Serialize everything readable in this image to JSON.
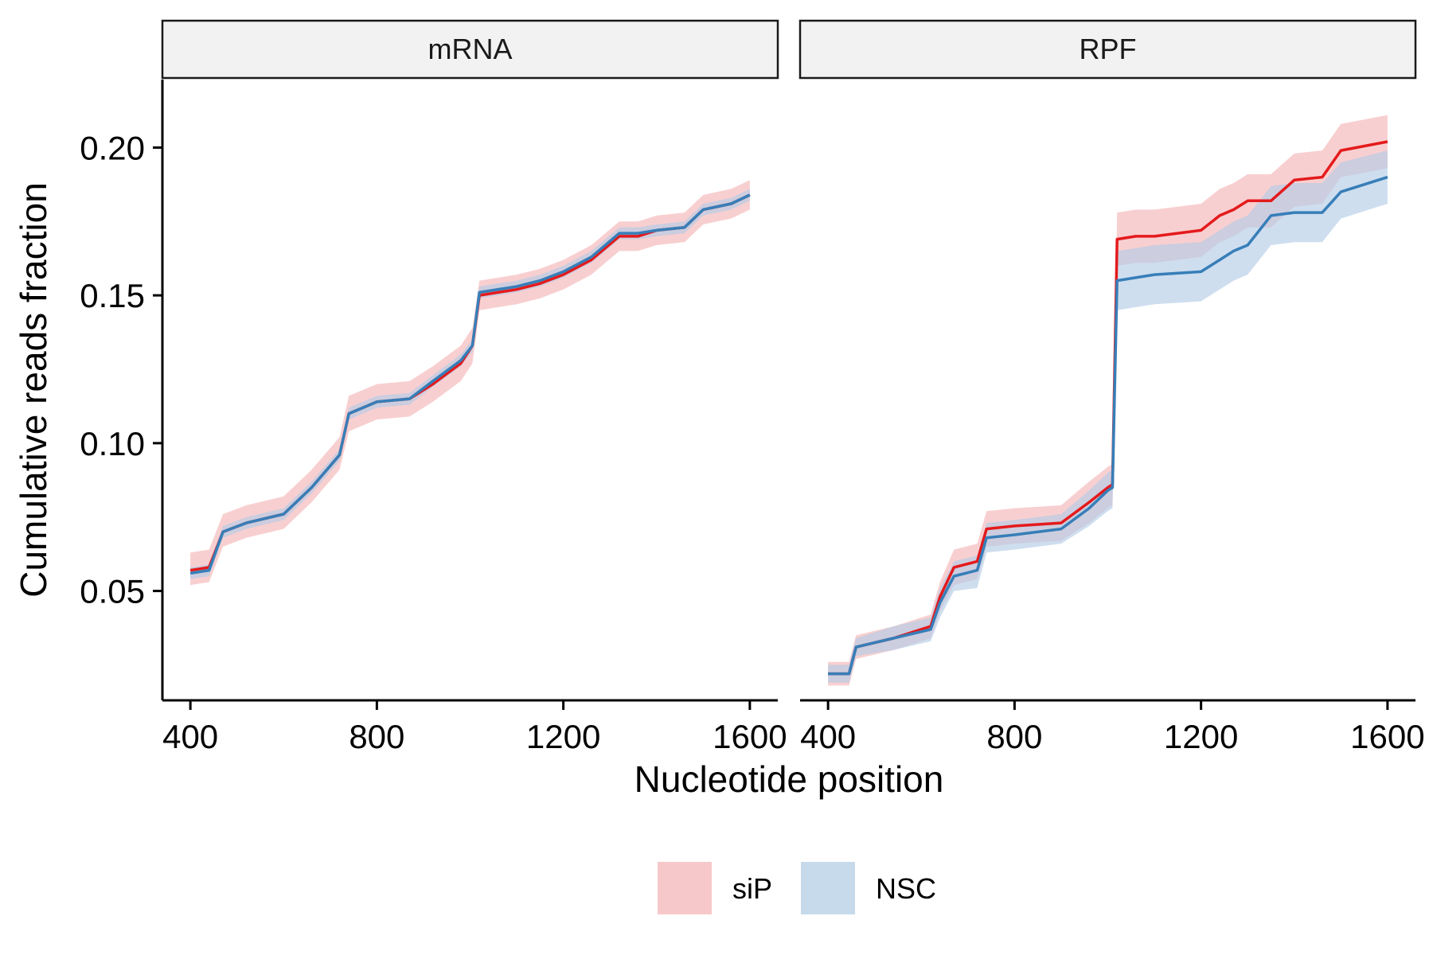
{
  "chart_data": {
    "type": "line",
    "xlabel": "Nucleotide position",
    "ylabel": "Cumulative reads fraction",
    "x_ticks": [
      400,
      800,
      1200,
      1600
    ],
    "x_tick_labels": [
      "400",
      "800",
      "1200",
      "1600"
    ],
    "y_ticks": [
      0.05,
      0.1,
      0.15,
      0.2
    ],
    "y_tick_labels": [
      "0.05",
      "0.10",
      "0.15",
      "0.20"
    ],
    "xlim": [
      340,
      1660
    ],
    "ylim": [
      0.013,
      0.223
    ],
    "grid": false,
    "legend_position": "bottom",
    "legend": [
      {
        "name": "siP",
        "color": "#e41a1c",
        "fill": "#f4b6b7"
      },
      {
        "name": "NSC",
        "color": "#377eb8",
        "fill": "#b3cde6"
      }
    ],
    "panels": [
      {
        "title": "mRNA",
        "series": [
          {
            "name": "siP",
            "color": "#e41a1c",
            "x": [
              400,
              440,
              470,
              520,
              600,
              660,
              720,
              740,
              800,
              870,
              920,
              980,
              1005,
              1020,
              1100,
              1150,
              1200,
              1260,
              1320,
              1360,
              1400,
              1460,
              1500,
              1560,
              1600
            ],
            "y": [
              0.057,
              0.058,
              0.07,
              0.073,
              0.076,
              0.085,
              0.096,
              0.11,
              0.114,
              0.115,
              0.12,
              0.127,
              0.133,
              0.15,
              0.152,
              0.154,
              0.157,
              0.162,
              0.17,
              0.17,
              0.172,
              0.173,
              0.179,
              0.181,
              0.184
            ],
            "lower": [
              0.052,
              0.053,
              0.065,
              0.068,
              0.071,
              0.08,
              0.091,
              0.104,
              0.108,
              0.109,
              0.114,
              0.121,
              0.127,
              0.145,
              0.147,
              0.149,
              0.152,
              0.157,
              0.165,
              0.165,
              0.167,
              0.168,
              0.174,
              0.176,
              0.179
            ],
            "upper": [
              0.063,
              0.064,
              0.076,
              0.079,
              0.082,
              0.091,
              0.102,
              0.116,
              0.12,
              0.121,
              0.126,
              0.133,
              0.139,
              0.155,
              0.157,
              0.159,
              0.162,
              0.167,
              0.175,
              0.175,
              0.177,
              0.178,
              0.184,
              0.186,
              0.189
            ]
          },
          {
            "name": "NSC",
            "color": "#377eb8",
            "x": [
              400,
              440,
              470,
              520,
              600,
              660,
              720,
              740,
              800,
              870,
              920,
              980,
              1005,
              1020,
              1100,
              1150,
              1200,
              1260,
              1320,
              1360,
              1400,
              1460,
              1500,
              1560,
              1600
            ],
            "y": [
              0.056,
              0.057,
              0.07,
              0.073,
              0.076,
              0.085,
              0.096,
              0.11,
              0.114,
              0.115,
              0.121,
              0.128,
              0.133,
              0.151,
              0.153,
              0.155,
              0.158,
              0.163,
              0.171,
              0.171,
              0.172,
              0.173,
              0.179,
              0.181,
              0.184
            ],
            "lower": [
              0.054,
              0.055,
              0.068,
              0.071,
              0.074,
              0.083,
              0.094,
              0.108,
              0.112,
              0.113,
              0.119,
              0.126,
              0.131,
              0.149,
              0.151,
              0.153,
              0.156,
              0.161,
              0.169,
              0.169,
              0.17,
              0.171,
              0.177,
              0.179,
              0.182
            ],
            "upper": [
              0.058,
              0.059,
              0.072,
              0.075,
              0.078,
              0.087,
              0.098,
              0.112,
              0.116,
              0.117,
              0.123,
              0.13,
              0.135,
              0.153,
              0.155,
              0.157,
              0.16,
              0.165,
              0.173,
              0.173,
              0.174,
              0.175,
              0.181,
              0.183,
              0.186
            ]
          }
        ]
      },
      {
        "title": "RPF",
        "series": [
          {
            "name": "siP",
            "color": "#e41a1c",
            "x": [
              400,
              445,
              460,
              540,
              620,
              640,
              670,
              720,
              740,
              800,
              900,
              960,
              1000,
              1010,
              1020,
              1060,
              1100,
              1200,
              1240,
              1270,
              1300,
              1350,
              1400,
              1460,
              1500,
              1600
            ],
            "y": [
              0.022,
              0.022,
              0.031,
              0.034,
              0.038,
              0.048,
              0.058,
              0.06,
              0.071,
              0.072,
              0.073,
              0.08,
              0.085,
              0.086,
              0.169,
              0.17,
              0.17,
              0.172,
              0.177,
              0.179,
              0.182,
              0.182,
              0.189,
              0.19,
              0.199,
              0.202
            ],
            "lower": [
              0.018,
              0.018,
              0.027,
              0.03,
              0.034,
              0.043,
              0.052,
              0.054,
              0.065,
              0.066,
              0.067,
              0.073,
              0.078,
              0.079,
              0.16,
              0.161,
              0.161,
              0.163,
              0.168,
              0.17,
              0.173,
              0.173,
              0.18,
              0.181,
              0.19,
              0.193
            ],
            "upper": [
              0.026,
              0.026,
              0.035,
              0.038,
              0.042,
              0.053,
              0.064,
              0.066,
              0.077,
              0.078,
              0.079,
              0.087,
              0.092,
              0.093,
              0.178,
              0.179,
              0.179,
              0.181,
              0.186,
              0.188,
              0.191,
              0.191,
              0.198,
              0.199,
              0.208,
              0.211
            ]
          },
          {
            "name": "NSC",
            "color": "#377eb8",
            "x": [
              400,
              445,
              460,
              540,
              620,
              640,
              670,
              720,
              740,
              800,
              900,
              960,
              1000,
              1010,
              1020,
              1060,
              1100,
              1200,
              1240,
              1270,
              1300,
              1350,
              1400,
              1460,
              1500,
              1600
            ],
            "y": [
              0.022,
              0.022,
              0.031,
              0.034,
              0.037,
              0.046,
              0.055,
              0.057,
              0.068,
              0.069,
              0.071,
              0.078,
              0.084,
              0.085,
              0.155,
              0.156,
              0.157,
              0.158,
              0.162,
              0.165,
              0.167,
              0.177,
              0.178,
              0.178,
              0.185,
              0.19
            ],
            "lower": [
              0.019,
              0.019,
              0.028,
              0.03,
              0.033,
              0.041,
              0.05,
              0.051,
              0.063,
              0.064,
              0.066,
              0.072,
              0.077,
              0.078,
              0.145,
              0.146,
              0.147,
              0.148,
              0.152,
              0.155,
              0.157,
              0.167,
              0.168,
              0.168,
              0.176,
              0.181
            ],
            "upper": [
              0.025,
              0.025,
              0.034,
              0.038,
              0.041,
              0.051,
              0.06,
              0.062,
              0.073,
              0.074,
              0.076,
              0.084,
              0.09,
              0.091,
              0.165,
              0.166,
              0.167,
              0.168,
              0.172,
              0.175,
              0.177,
              0.187,
              0.188,
              0.188,
              0.195,
              0.199
            ]
          }
        ]
      }
    ]
  }
}
